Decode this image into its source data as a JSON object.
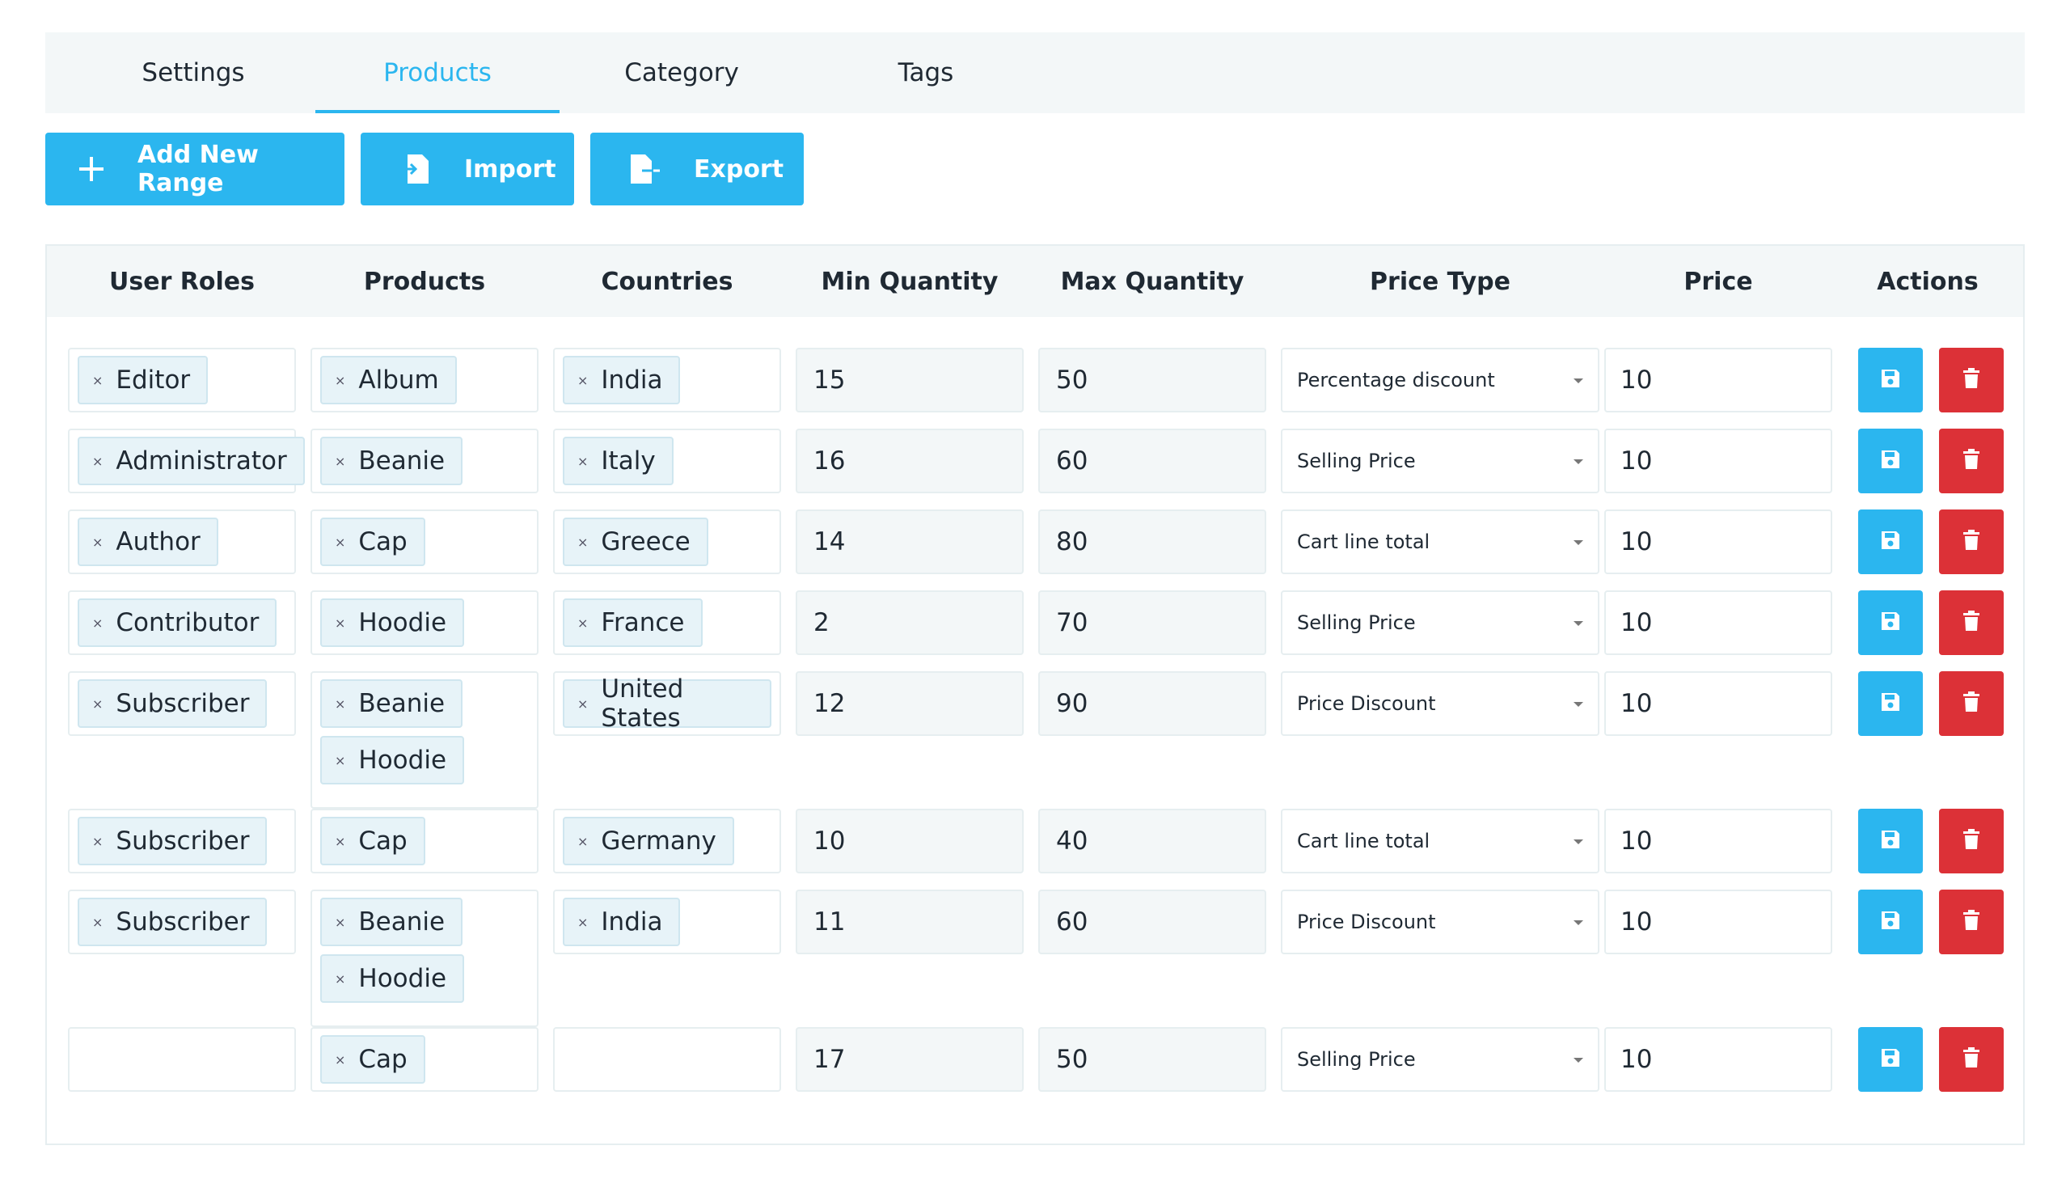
{
  "tabs": [
    {
      "label": "Settings",
      "active": false
    },
    {
      "label": "Products",
      "active": true
    },
    {
      "label": "Category",
      "active": false
    },
    {
      "label": "Tags",
      "active": false
    }
  ],
  "toolbar": {
    "add_label": "Add New Range",
    "import_label": "Import",
    "export_label": "Export"
  },
  "colors": {
    "accent": "#2bb6ef",
    "danger": "#dc3137",
    "header_bg": "#f3f7f8"
  },
  "table": {
    "columns": [
      "User Roles",
      "Products",
      "Countries",
      "Min Quantity",
      "Max Quantity",
      "Price Type",
      "Price",
      "Actions"
    ],
    "rows": [
      {
        "roles": [
          "Editor"
        ],
        "products": [
          "Album"
        ],
        "countries": [
          "India"
        ],
        "min": "15",
        "max": "50",
        "price_type": "Percentage discount",
        "price": "10"
      },
      {
        "roles": [
          "Administrator"
        ],
        "products": [
          "Beanie"
        ],
        "countries": [
          "Italy"
        ],
        "min": "16",
        "max": "60",
        "price_type": "Selling Price",
        "price": "10"
      },
      {
        "roles": [
          "Author"
        ],
        "products": [
          "Cap"
        ],
        "countries": [
          "Greece"
        ],
        "min": "14",
        "max": "80",
        "price_type": "Cart line total",
        "price": "10"
      },
      {
        "roles": [
          "Contributor"
        ],
        "products": [
          "Hoodie"
        ],
        "countries": [
          "France"
        ],
        "min": "2",
        "max": "70",
        "price_type": "Selling Price",
        "price": "10"
      },
      {
        "roles": [
          "Subscriber"
        ],
        "products": [
          "Beanie",
          "Hoodie"
        ],
        "countries": [
          "United States"
        ],
        "min": "12",
        "max": "90",
        "price_type": "Price Discount",
        "price": "10"
      },
      {
        "roles": [
          "Subscriber"
        ],
        "products": [
          "Cap"
        ],
        "countries": [
          "Germany"
        ],
        "min": "10",
        "max": "40",
        "price_type": "Cart line total",
        "price": "10"
      },
      {
        "roles": [
          "Subscriber"
        ],
        "products": [
          "Beanie",
          "Hoodie"
        ],
        "countries": [
          "India"
        ],
        "min": "11",
        "max": "60",
        "price_type": "Price Discount",
        "price": "10"
      },
      {
        "roles": [],
        "products": [
          "Cap"
        ],
        "countries": [],
        "min": "17",
        "max": "50",
        "price_type": "Selling Price",
        "price": "10"
      }
    ]
  }
}
